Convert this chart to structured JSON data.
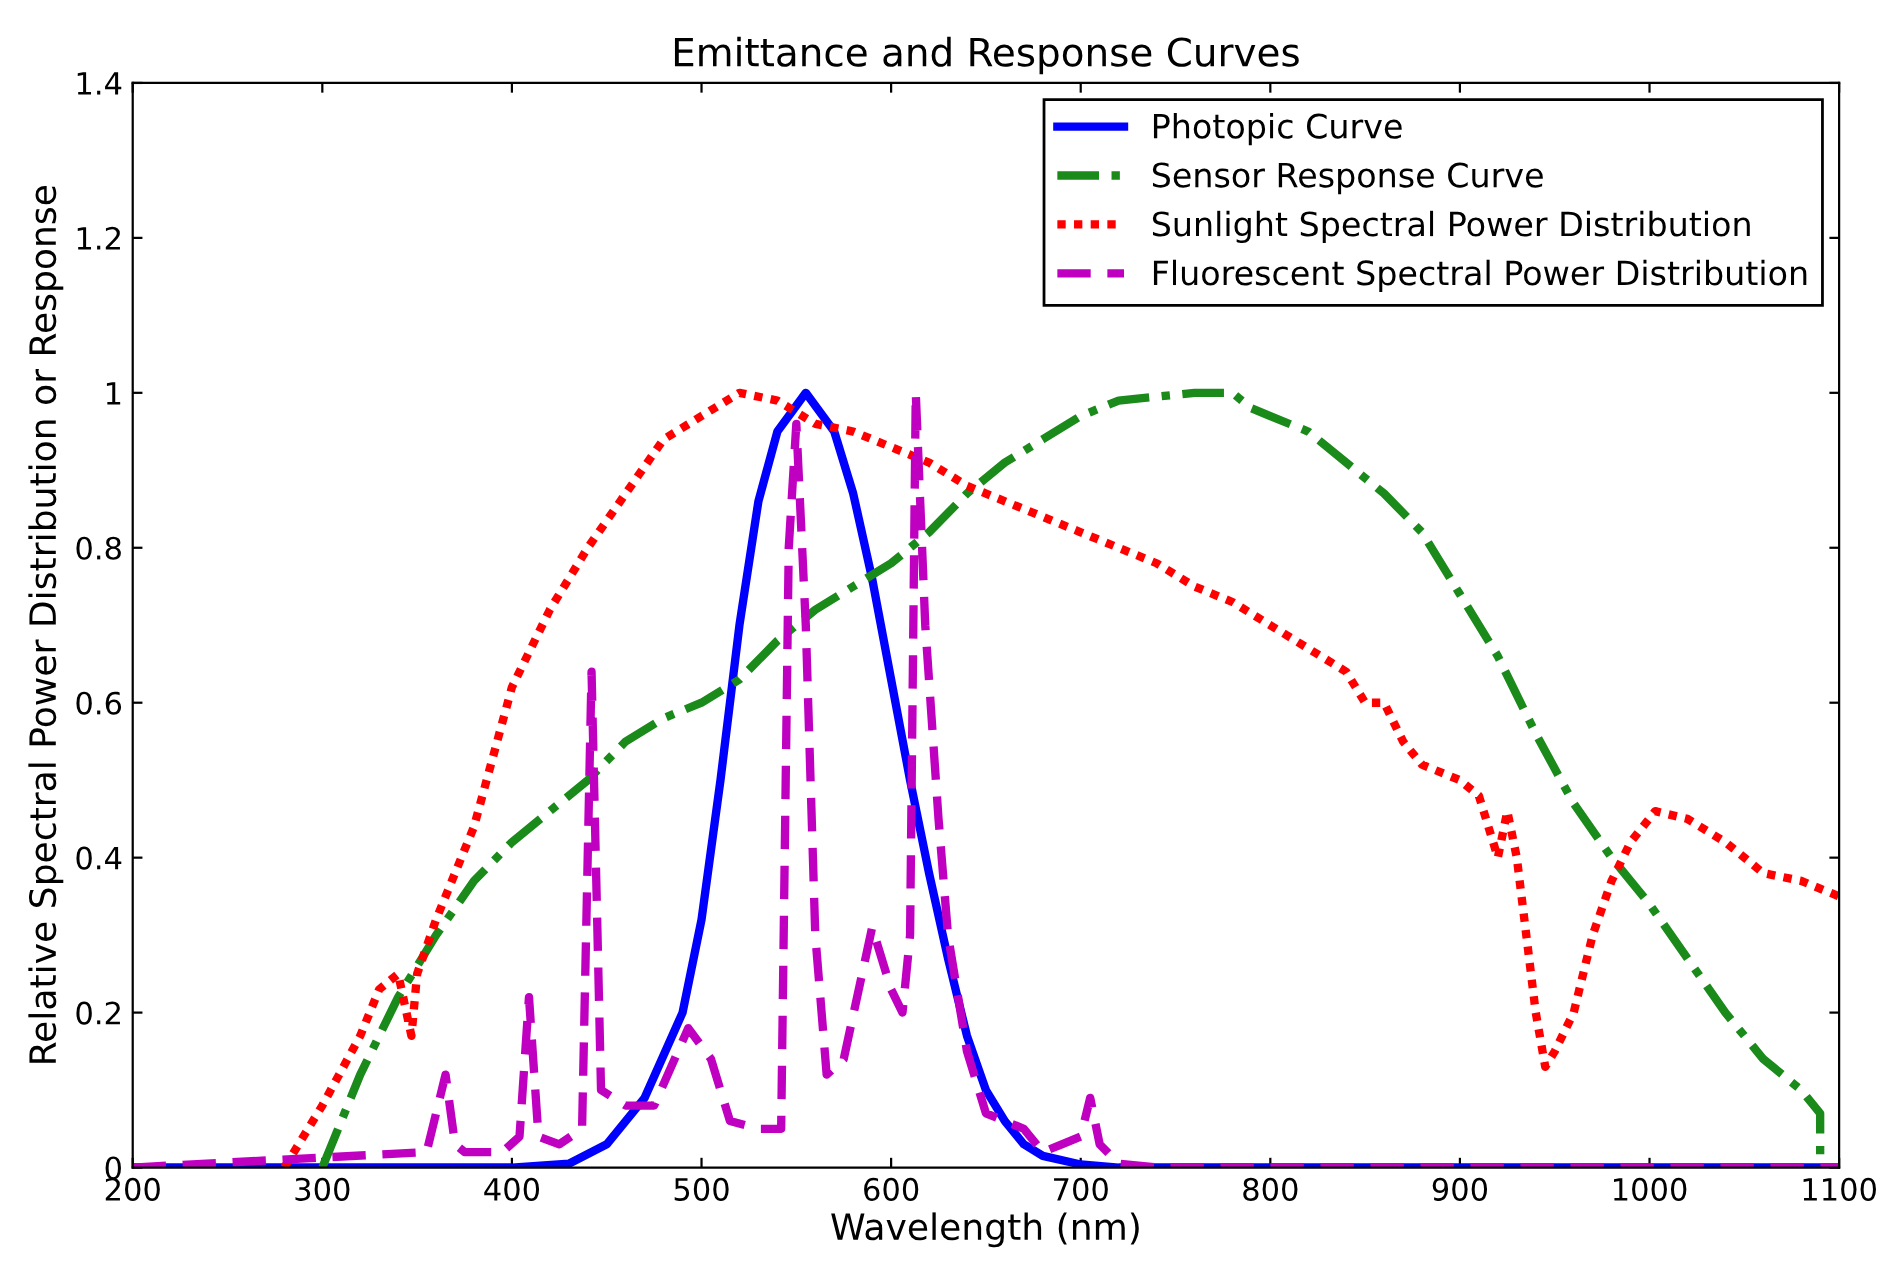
{
  "chart_data": {
    "type": "line",
    "title": "Emittance and Response Curves",
    "xlabel": "Wavelength (nm)",
    "ylabel": "Relative Spectral Power Distribution or Response",
    "xlim": [
      200,
      1100
    ],
    "ylim": [
      0,
      1.4
    ],
    "xticks": [
      200,
      300,
      400,
      500,
      600,
      700,
      800,
      900,
      1000,
      1100
    ],
    "yticks": [
      0,
      0.2,
      0.4,
      0.6,
      0.8,
      1,
      1.2,
      1.4
    ],
    "grid": false,
    "legend": "top right",
    "series": [
      {
        "name": "Photopic Curve",
        "color": "#0000ff",
        "line_style": "solid",
        "x": [
          200,
          400,
          430,
          450,
          470,
          490,
          500,
          510,
          520,
          530,
          540,
          555,
          570,
          580,
          590,
          600,
          610,
          620,
          630,
          640,
          650,
          660,
          670,
          680,
          700,
          720,
          1100
        ],
        "values": [
          0,
          0,
          0.005,
          0.03,
          0.09,
          0.2,
          0.32,
          0.5,
          0.7,
          0.86,
          0.95,
          1.0,
          0.95,
          0.87,
          0.76,
          0.63,
          0.5,
          0.38,
          0.27,
          0.17,
          0.1,
          0.06,
          0.03,
          0.015,
          0.004,
          0,
          0
        ]
      },
      {
        "name": "Sensor Response Curve",
        "color": "#1a8a1a",
        "line_style": "dashdot",
        "x": [
          300,
          320,
          340,
          360,
          380,
          400,
          420,
          440,
          460,
          480,
          500,
          520,
          540,
          560,
          580,
          600,
          620,
          640,
          660,
          680,
          700,
          720,
          760,
          780,
          790,
          800,
          820,
          840,
          860,
          880,
          900,
          920,
          940,
          960,
          980,
          1000,
          1020,
          1040,
          1060,
          1080,
          1090,
          1090
        ],
        "values": [
          0,
          0.12,
          0.22,
          0.3,
          0.37,
          0.42,
          0.46,
          0.5,
          0.55,
          0.58,
          0.6,
          0.63,
          0.68,
          0.72,
          0.75,
          0.78,
          0.82,
          0.87,
          0.91,
          0.94,
          0.97,
          0.99,
          1.0,
          1.0,
          0.98,
          0.97,
          0.95,
          0.91,
          0.87,
          0.82,
          0.74,
          0.66,
          0.56,
          0.47,
          0.4,
          0.34,
          0.27,
          0.2,
          0.14,
          0.1,
          0.07,
          0
        ]
      },
      {
        "name": "Sunlight Spectral Power Distribution",
        "color": "#ff0000",
        "line_style": "dotted",
        "x": [
          280,
          300,
          320,
          330,
          340,
          347,
          350,
          360,
          380,
          400,
          420,
          440,
          460,
          480,
          500,
          520,
          540,
          560,
          580,
          600,
          620,
          640,
          660,
          680,
          700,
          720,
          740,
          760,
          780,
          800,
          820,
          840,
          850,
          860,
          870,
          880,
          900,
          910,
          920,
          925,
          930,
          935,
          940,
          945,
          950,
          960,
          970,
          980,
          990,
          1003,
          1020,
          1040,
          1060,
          1080,
          1100
        ],
        "values": [
          0,
          0.08,
          0.17,
          0.23,
          0.25,
          0.17,
          0.25,
          0.32,
          0.44,
          0.62,
          0.72,
          0.8,
          0.87,
          0.94,
          0.97,
          1.0,
          0.99,
          0.96,
          0.95,
          0.93,
          0.91,
          0.88,
          0.86,
          0.84,
          0.82,
          0.8,
          0.78,
          0.75,
          0.73,
          0.7,
          0.67,
          0.64,
          0.6,
          0.6,
          0.55,
          0.52,
          0.5,
          0.48,
          0.4,
          0.46,
          0.4,
          0.3,
          0.2,
          0.13,
          0.15,
          0.2,
          0.3,
          0.37,
          0.42,
          0.46,
          0.45,
          0.42,
          0.38,
          0.37,
          0.35
        ]
      },
      {
        "name": "Fluorescent Spectral Power Distribution",
        "color": "#c000c0",
        "line_style": "dashed",
        "x": [
          200,
          355,
          365,
          370,
          375,
          395,
          404,
          409,
          414,
          425,
          437,
          442,
          447,
          460,
          475,
          493,
          505,
          515,
          530,
          542,
          546,
          550,
          555,
          560,
          566,
          575,
          590,
          600,
          606,
          610,
          613,
          618,
          625,
          630,
          640,
          650,
          660,
          670,
          680,
          690,
          700,
          705,
          710,
          720,
          740,
          1100
        ],
        "values": [
          0,
          0.02,
          0.12,
          0.03,
          0.02,
          0.02,
          0.04,
          0.22,
          0.04,
          0.03,
          0.05,
          0.64,
          0.1,
          0.08,
          0.08,
          0.18,
          0.14,
          0.06,
          0.05,
          0.05,
          0.8,
          0.96,
          0.7,
          0.3,
          0.12,
          0.14,
          0.31,
          0.23,
          0.2,
          0.3,
          1.0,
          0.7,
          0.45,
          0.3,
          0.15,
          0.07,
          0.06,
          0.05,
          0.02,
          0.03,
          0.04,
          0.09,
          0.03,
          0.005,
          0,
          0
        ]
      }
    ]
  }
}
